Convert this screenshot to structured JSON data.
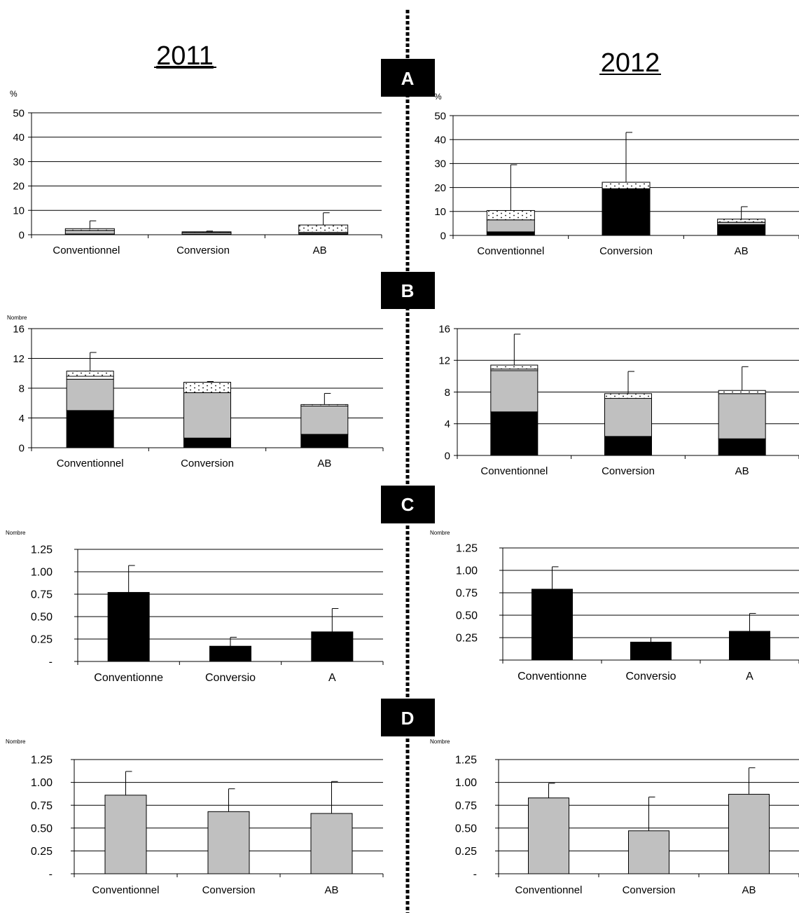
{
  "years": [
    "2011",
    "2012"
  ],
  "sections": [
    "A",
    "B",
    "C",
    "D"
  ],
  "colors": {
    "black": "#000000",
    "gray": "#c0c0c0",
    "white": "#ffffff",
    "dotted": "dots",
    "divider": "#000000"
  },
  "chart_data": [
    {
      "id": "A-2011",
      "type": "bar",
      "stacked": true,
      "categories": [
        "Conventionnel",
        "Conversion",
        "AB"
      ],
      "ylabel": "%",
      "ylim": [
        0,
        50
      ],
      "yticks": [
        "0",
        "10",
        "20",
        "30",
        "40",
        "50"
      ],
      "stacks": [
        [
          {
            "fill": "black",
            "v": 0.3
          },
          {
            "fill": "gray",
            "v": 1.5
          },
          {
            "fill": "dotted",
            "v": 0.7
          }
        ],
        [
          {
            "fill": "black",
            "v": 0.2
          },
          {
            "fill": "gray",
            "v": 0.7
          },
          {
            "fill": "dotted",
            "v": 0.3
          }
        ],
        [
          {
            "fill": "black",
            "v": 0.5
          },
          {
            "fill": "gray",
            "v": 0.5
          },
          {
            "fill": "dotted",
            "v": 3.0
          }
        ]
      ],
      "errors": [
        5.7,
        1.5,
        9.0
      ]
    },
    {
      "id": "A-2012",
      "type": "bar",
      "stacked": true,
      "categories": [
        "Conventionnel",
        "Conversion",
        "AB"
      ],
      "ylabel": "%",
      "ylim": [
        0,
        50
      ],
      "yticks": [
        "0",
        "10",
        "20",
        "30",
        "40",
        "50"
      ],
      "stacks": [
        [
          {
            "fill": "black",
            "v": 1.5
          },
          {
            "fill": "gray",
            "v": 5.0
          },
          {
            "fill": "dotted",
            "v": 3.9
          }
        ],
        [
          {
            "fill": "black",
            "v": 19.5
          },
          {
            "fill": "dotted",
            "v": 2.7
          }
        ],
        [
          {
            "fill": "black",
            "v": 4.5
          },
          {
            "fill": "gray",
            "v": 1.0
          },
          {
            "fill": "dotted",
            "v": 1.3
          }
        ]
      ],
      "errors": [
        29.5,
        43.0,
        12.0
      ]
    },
    {
      "id": "B-2011",
      "type": "bar",
      "stacked": true,
      "categories": [
        "Conventionnel",
        "Conversion",
        "AB"
      ],
      "ylabel": "Nombre",
      "ylim": [
        0,
        16
      ],
      "yticks": [
        "0",
        "4",
        "8",
        "12",
        "16"
      ],
      "stacks": [
        [
          {
            "fill": "black",
            "v": 5.0
          },
          {
            "fill": "gray",
            "v": 4.2
          },
          {
            "fill": "white",
            "v": 0.4
          },
          {
            "fill": "dotted",
            "v": 0.7
          }
        ],
        [
          {
            "fill": "black",
            "v": 1.3
          },
          {
            "fill": "gray",
            "v": 6.1
          },
          {
            "fill": "dotted",
            "v": 1.4
          }
        ],
        [
          {
            "fill": "black",
            "v": 1.8
          },
          {
            "fill": "gray",
            "v": 3.8
          },
          {
            "fill": "dotted",
            "v": 0.2
          }
        ]
      ],
      "errors": [
        12.8,
        8.9,
        7.3
      ]
    },
    {
      "id": "B-2012",
      "type": "bar",
      "stacked": true,
      "categories": [
        "Conventionnel",
        "Conversion",
        "AB"
      ],
      "ylabel": "",
      "ylim": [
        0,
        16
      ],
      "yticks": [
        "0",
        "4",
        "8",
        "12",
        "16"
      ],
      "stacks": [
        [
          {
            "fill": "black",
            "v": 5.5
          },
          {
            "fill": "gray",
            "v": 5.2
          },
          {
            "fill": "white",
            "v": 0.2
          },
          {
            "fill": "dotted",
            "v": 0.5
          }
        ],
        [
          {
            "fill": "black",
            "v": 2.4
          },
          {
            "fill": "gray",
            "v": 4.8
          },
          {
            "fill": "dotted",
            "v": 0.6
          }
        ],
        [
          {
            "fill": "black",
            "v": 2.1
          },
          {
            "fill": "gray",
            "v": 5.7
          },
          {
            "fill": "dotted",
            "v": 0.4
          }
        ]
      ],
      "errors": [
        15.3,
        10.6,
        11.2
      ]
    },
    {
      "id": "C-2011",
      "type": "bar",
      "stacked": false,
      "fill": "black",
      "categories": [
        "Conventionne",
        "Conversio",
        "A"
      ],
      "ylabel": "Nombre",
      "ylim": [
        0,
        1.25
      ],
      "yticks": [
        "-",
        "0.25",
        "0.50",
        "0.75",
        "1.00",
        "1.25"
      ],
      "values": [
        0.77,
        0.17,
        0.33
      ],
      "errors": [
        1.07,
        0.27,
        0.59
      ]
    },
    {
      "id": "C-2012",
      "type": "bar",
      "stacked": false,
      "fill": "black",
      "categories": [
        "Conventionne",
        "Conversio",
        "A"
      ],
      "ylabel": "Nombre",
      "ylim": [
        0,
        1.25
      ],
      "yticks": [
        "",
        "0.25",
        "0.50",
        "0.75",
        "1.00",
        "1.25"
      ],
      "values": [
        0.79,
        0.2,
        0.32
      ],
      "errors": [
        1.04,
        0.25,
        0.52
      ]
    },
    {
      "id": "D-2011",
      "type": "bar",
      "stacked": false,
      "fill": "gray",
      "categories": [
        "Conventionnel",
        "Conversion",
        "AB"
      ],
      "ylabel": "Nombre",
      "ylim": [
        0,
        1.25
      ],
      "yticks": [
        "-",
        "0.25",
        "0.50",
        "0.75",
        "1.00",
        "1.25"
      ],
      "values": [
        0.86,
        0.68,
        0.66
      ],
      "errors": [
        1.12,
        0.93,
        1.01
      ]
    },
    {
      "id": "D-2012",
      "type": "bar",
      "stacked": false,
      "fill": "gray",
      "categories": [
        "Conventionnel",
        "Conversion",
        "AB"
      ],
      "ylabel": "Nombre",
      "ylim": [
        0,
        1.25
      ],
      "yticks": [
        "-",
        "0.25",
        "0.50",
        "0.75",
        "1.00",
        "1.25"
      ],
      "values": [
        0.83,
        0.47,
        0.87
      ],
      "errors": [
        0.99,
        0.84,
        1.16
      ]
    }
  ]
}
